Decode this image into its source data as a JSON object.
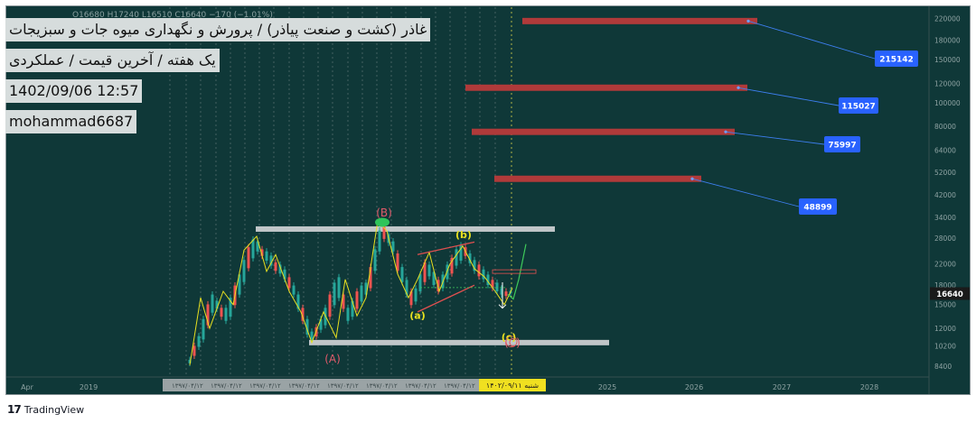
{
  "header": {
    "ohlc_text": "O16680  H17240  L16510  C16640  −170 (−1.01%)"
  },
  "info_box": {
    "title": "غاذر (کشت و صنعت پیاذر) / پرورش و نگهداری میوه جات و سبزیجات",
    "interval_line": "یک هفته / آخرین قیمت / عملکردی",
    "timestamp": "1402/09/06 12:57",
    "author": "mohammad6687"
  },
  "footer": {
    "brand": "TradingView"
  },
  "colors": {
    "background": "#0f3838",
    "target_bar": "#b03a3a",
    "label_box": "#2962ff",
    "support_zone": "#c0c6c8",
    "price_line": "#e8e020",
    "candle_up": "#26a69a",
    "candle_down": "#ef5350",
    "last_price_tag": "#1a1a1a",
    "date_highlight": "#f0e020"
  },
  "chart_data": {
    "type": "candlestick",
    "symbol": "غاذر",
    "interval": "1W",
    "y_axis": {
      "scale": "log",
      "ticks": [
        220000,
        180000,
        150000,
        120000,
        100000,
        80000,
        64000,
        52000,
        42000,
        34000,
        28000,
        22000,
        18000,
        15000,
        12000,
        10200,
        8400
      ],
      "range": [
        7600,
        245000
      ]
    },
    "x_axis": {
      "tick_labels": [
        "Apr",
        "2019",
        "2025",
        "2026",
        "2027",
        "2028"
      ],
      "highlighted_date": "شنبه ۱۴۰۲/۰۹/۱۱",
      "hidden_range_label": "۱۳۹۷/۰۴/۱۲"
    },
    "last_price": 16640,
    "target_levels": [
      {
        "label": "215142",
        "value": 215142
      },
      {
        "label": "115027",
        "value": 115027
      },
      {
        "label": "75997",
        "value": 75997
      },
      {
        "label": "48899",
        "value": 48899
      }
    ],
    "support_resistance": [
      {
        "name": "resistance",
        "value": 30500
      },
      {
        "name": "support",
        "value": 10500
      }
    ],
    "wave_labels": [
      {
        "text": "(B)",
        "price": 35500,
        "color": "#e05a6a"
      },
      {
        "text": "(b)",
        "price": 29000,
        "color": "#e8e020"
      },
      {
        "text": "(a)",
        "price": 13600,
        "color": "#e8e020"
      },
      {
        "text": "(c)",
        "price": 11100,
        "color": "#e8e020"
      },
      {
        "text": "(C)",
        "price": 10500,
        "color": "#e05a6a"
      },
      {
        "text": "(A)",
        "price": 9000,
        "color": "#e05a6a"
      }
    ],
    "grid": false,
    "legend": "none"
  }
}
